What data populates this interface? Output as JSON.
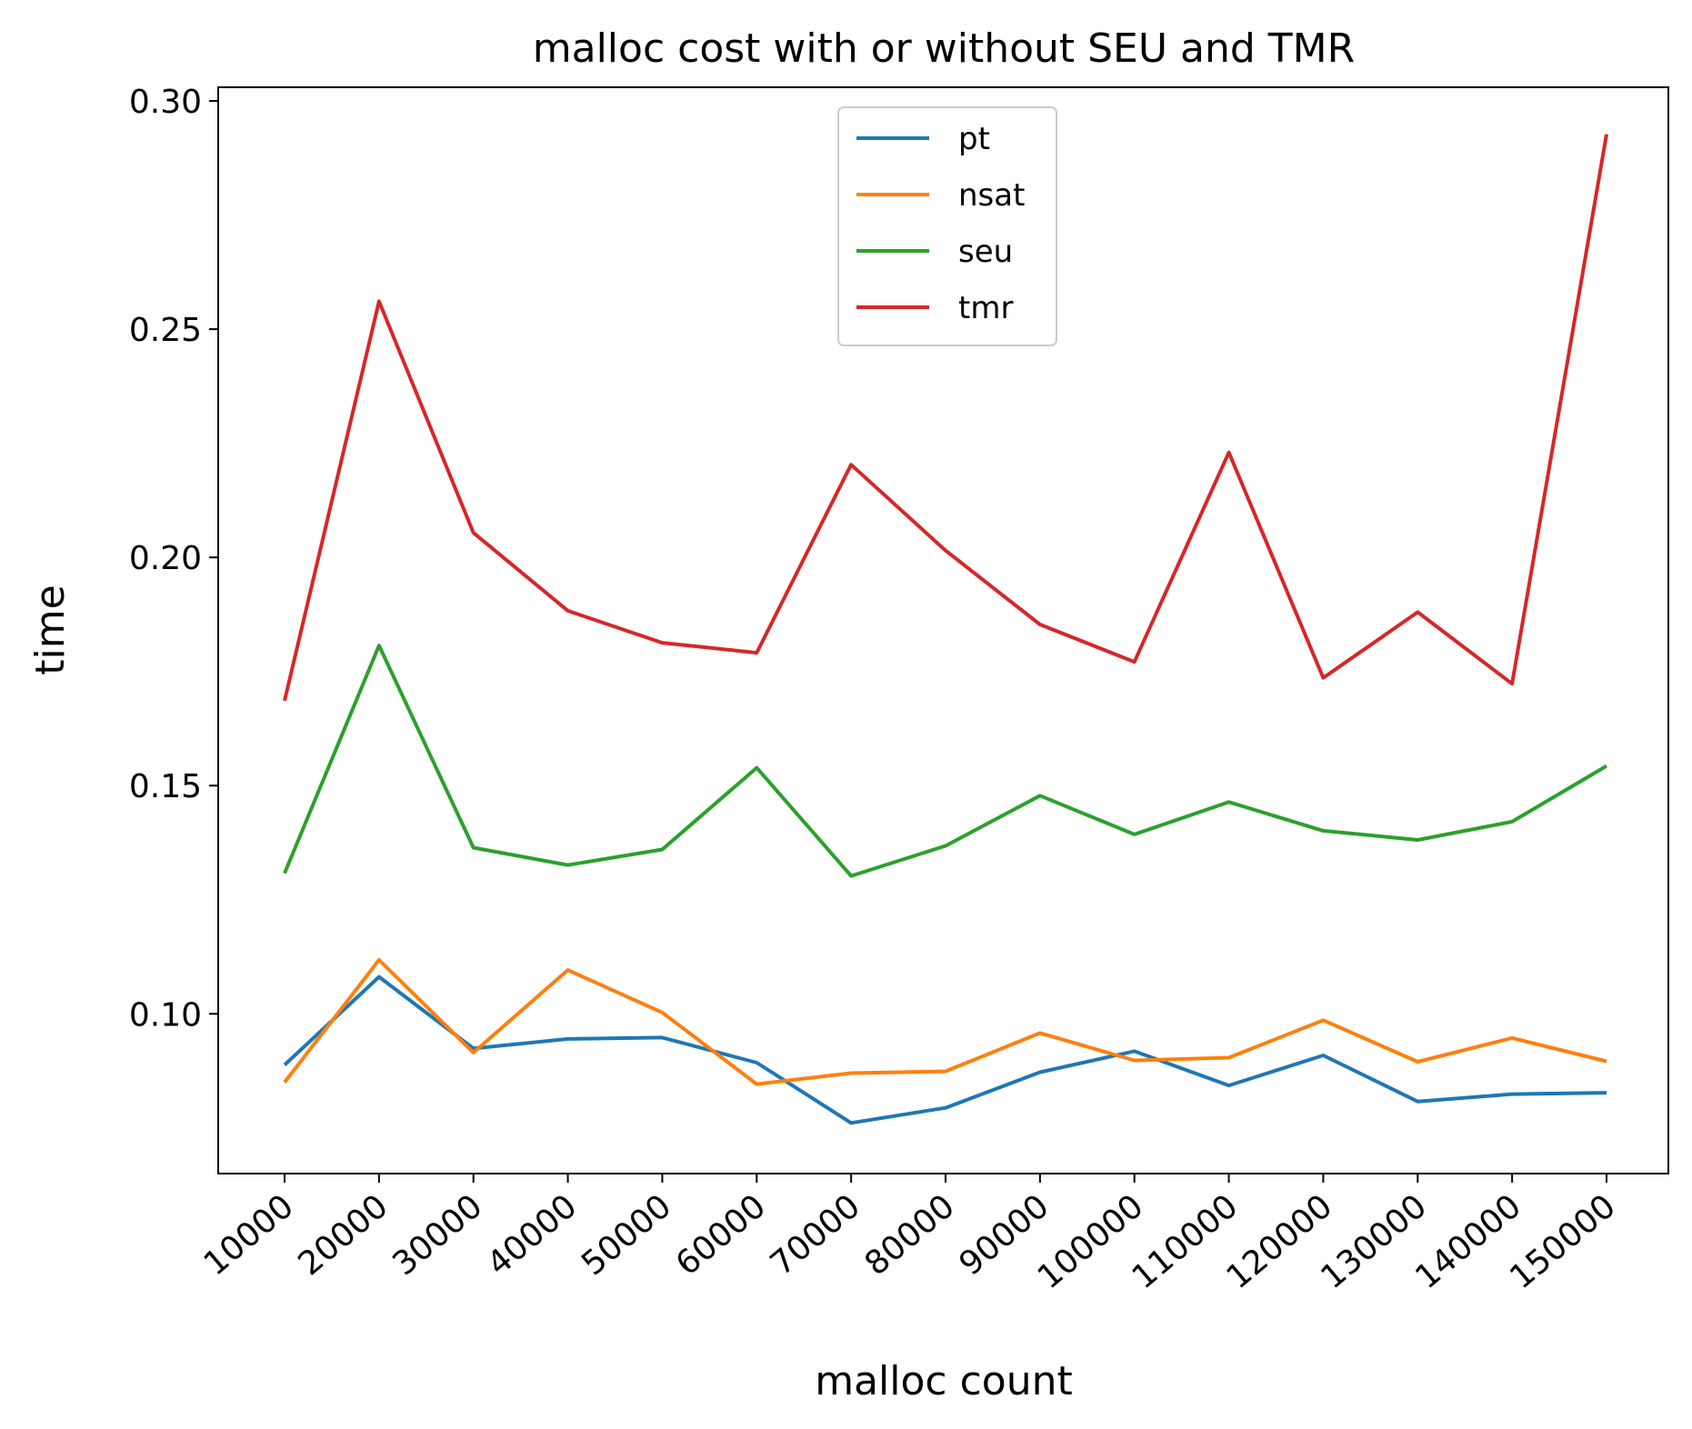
{
  "chart_data": {
    "type": "line",
    "title": "malloc cost with or without SEU and TMR",
    "xlabel": "malloc count",
    "ylabel": "time",
    "x": [
      10000,
      20000,
      30000,
      40000,
      50000,
      60000,
      70000,
      80000,
      90000,
      100000,
      110000,
      120000,
      130000,
      140000,
      150000
    ],
    "x_tick_labels": [
      "10000",
      "20000",
      "30000",
      "40000",
      "50000",
      "60000",
      "70000",
      "80000",
      "90000",
      "100000",
      "110000",
      "120000",
      "130000",
      "140000",
      "150000"
    ],
    "y_ticks": [
      0.1,
      0.15,
      0.2,
      0.25,
      0.3
    ],
    "y_tick_labels": [
      "0.10",
      "0.15",
      "0.20",
      "0.25",
      "0.30"
    ],
    "ylim": [
      0.065,
      0.303
    ],
    "grid": false,
    "legend_position": "top-center",
    "series": [
      {
        "name": "pt",
        "color": "#1f77b4",
        "values": [
          0.0888,
          0.1081,
          0.0924,
          0.0945,
          0.0948,
          0.0893,
          0.0761,
          0.0794,
          0.0872,
          0.0918,
          0.0843,
          0.0909,
          0.0808,
          0.0824,
          0.0827
        ]
      },
      {
        "name": "nsat",
        "color": "#ff7f0e",
        "values": [
          0.085,
          0.1118,
          0.0915,
          0.1096,
          0.1003,
          0.0846,
          0.087,
          0.0874,
          0.0958,
          0.0898,
          0.0904,
          0.0986,
          0.0895,
          0.0947,
          0.0896
        ]
      },
      {
        "name": "seu",
        "color": "#2ca02c",
        "values": [
          0.1308,
          0.1807,
          0.1364,
          0.1326,
          0.136,
          0.1539,
          0.1302,
          0.1368,
          0.1478,
          0.1393,
          0.1464,
          0.1401,
          0.1381,
          0.1421,
          0.1543
        ]
      },
      {
        "name": "tmr",
        "color": "#d62728",
        "values": [
          0.1686,
          0.2561,
          0.2054,
          0.1883,
          0.1813,
          0.1791,
          0.2203,
          0.2015,
          0.1853,
          0.1771,
          0.223,
          0.1736,
          0.188,
          0.1723,
          0.2927
        ]
      }
    ]
  }
}
